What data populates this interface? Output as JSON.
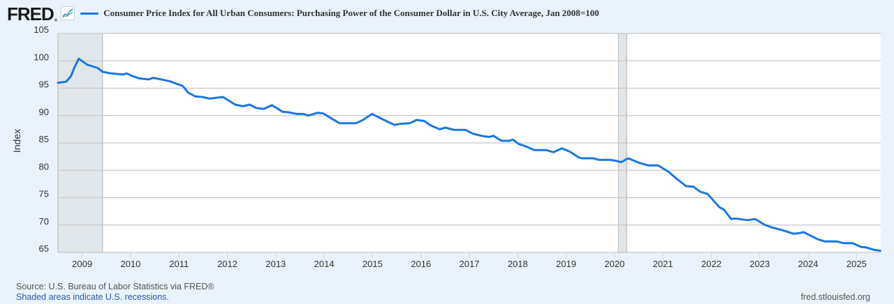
{
  "header": {
    "logo_text": "FRED",
    "logo_reg": "®",
    "series_title": "Consumer Price Index for All Urban Consumers: Purchasing Power of the Consumer Dollar in U.S. City Average, Jan 2008=100",
    "series_color": "#1a77e0"
  },
  "footer": {
    "source": "Source: U.S. Bureau of Labor Statistics via FRED®",
    "note": "Shaded areas indicate U.S. recessions.",
    "url": "fred.stlouisfed.org"
  },
  "chart_data": {
    "type": "line",
    "title": "Consumer Price Index for All Urban Consumers: Purchasing Power of the Consumer Dollar in U.S. City Average, Jan 2008=100",
    "xlabel": "",
    "ylabel": "Index",
    "xlim": [
      2008.5,
      2025.5
    ],
    "ylim": [
      65,
      105
    ],
    "yticks": [
      65,
      70,
      75,
      80,
      85,
      90,
      95,
      100,
      105
    ],
    "xticks": [
      2009,
      2010,
      2011,
      2012,
      2013,
      2014,
      2015,
      2016,
      2017,
      2018,
      2019,
      2020,
      2021,
      2022,
      2023,
      2024,
      2025
    ],
    "grid": true,
    "legend": "top-left",
    "recessions": [
      [
        2007.92,
        2009.42
      ],
      [
        2020.08,
        2020.25
      ]
    ],
    "series": [
      {
        "name": "Purchasing Power of the Consumer Dollar (Jan 2008=100)",
        "color": "#1a77e0",
        "x": [
          2008.5,
          2008.67,
          2008.77,
          2008.84,
          2008.93,
          2009.1,
          2009.32,
          2009.42,
          2009.6,
          2009.85,
          2009.92,
          2010.04,
          2010.18,
          2010.37,
          2010.47,
          2010.8,
          2011.08,
          2011.19,
          2011.34,
          2011.48,
          2011.63,
          2011.91,
          2012.16,
          2012.32,
          2012.46,
          2012.59,
          2012.75,
          2012.92,
          2013.14,
          2013.26,
          2013.43,
          2013.57,
          2013.67,
          2013.86,
          2013.98,
          2014.18,
          2014.32,
          2014.66,
          2014.8,
          2014.99,
          2015.19,
          2015.45,
          2015.59,
          2015.77,
          2015.91,
          2016.07,
          2016.2,
          2016.39,
          2016.5,
          2016.68,
          2016.92,
          2017.07,
          2017.25,
          2017.4,
          2017.5,
          2017.66,
          2017.83,
          2017.9,
          2018.02,
          2018.16,
          2018.34,
          2018.58,
          2018.74,
          2018.91,
          2019.08,
          2019.25,
          2019.32,
          2019.56,
          2019.68,
          2019.9,
          2019.99,
          2020.14,
          2020.28,
          2020.5,
          2020.69,
          2020.9,
          2021.12,
          2021.29,
          2021.48,
          2021.63,
          2021.77,
          2021.92,
          2022.16,
          2022.26,
          2022.41,
          2022.49,
          2022.74,
          2022.91,
          2023.09,
          2023.24,
          2023.49,
          2023.7,
          2023.8,
          2023.91,
          2024.06,
          2024.2,
          2024.35,
          2024.59,
          2024.73,
          2024.92,
          2025.09,
          2025.2,
          2025.35,
          2025.49
        ],
        "values": [
          96.0,
          96.2,
          97.2,
          98.8,
          100.4,
          99.3,
          98.7,
          98.0,
          97.7,
          97.5,
          97.7,
          97.2,
          96.8,
          96.6,
          96.9,
          96.3,
          95.4,
          94.2,
          93.5,
          93.4,
          93.1,
          93.4,
          92.0,
          91.7,
          92.0,
          91.4,
          91.2,
          91.9,
          90.7,
          90.6,
          90.3,
          90.3,
          90.0,
          90.5,
          90.4,
          89.3,
          88.6,
          88.6,
          89.2,
          90.3,
          89.4,
          88.3,
          88.5,
          88.6,
          89.2,
          89.0,
          88.2,
          87.5,
          87.8,
          87.4,
          87.4,
          86.7,
          86.3,
          86.1,
          86.3,
          85.4,
          85.4,
          85.6,
          84.8,
          84.4,
          83.7,
          83.7,
          83.3,
          84.0,
          83.4,
          82.4,
          82.2,
          82.2,
          81.9,
          81.9,
          81.8,
          81.5,
          82.2,
          81.4,
          80.9,
          80.9,
          79.7,
          78.4,
          77.1,
          77.0,
          76.1,
          75.7,
          73.3,
          72.8,
          71.1,
          71.2,
          70.9,
          71.1,
          70.1,
          69.6,
          69.0,
          68.4,
          68.5,
          68.7,
          68.0,
          67.4,
          67.0,
          67.0,
          66.7,
          66.7,
          66.0,
          65.9,
          65.5,
          65.3
        ]
      }
    ]
  }
}
